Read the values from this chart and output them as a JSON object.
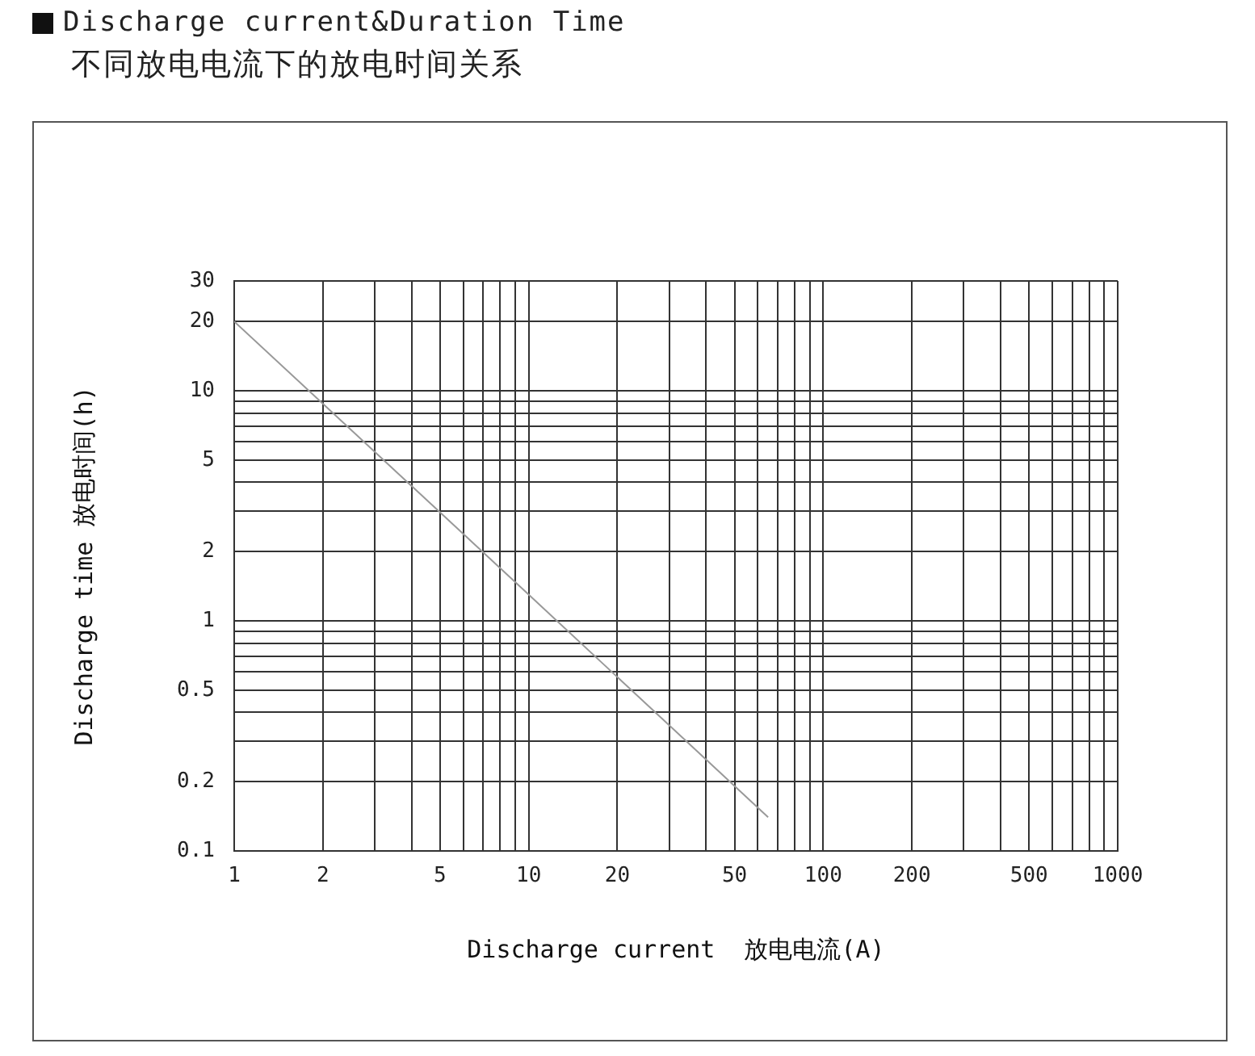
{
  "chart_data": {
    "type": "line",
    "title": "Discharge current&Duration Time",
    "subtitle": "不同放电电流下的放电时间关系",
    "xlabel": "Discharge current  放电电流(A)",
    "ylabel": "Discharge time 放电时间(h)",
    "log": "xy",
    "grid": true,
    "legend": false,
    "marker": "none",
    "line_style": "solid",
    "x": [
      1,
      10,
      65
    ],
    "series": [
      {
        "color": "#999999",
        "values": [
          20,
          1.3,
          0.14
        ]
      }
    ],
    "xlim": [
      1,
      1000
    ],
    "xticks": [
      1,
      2,
      {
        "value": 3,
        "label": null
      },
      {
        "value": 4,
        "label": null
      },
      5,
      {
        "value": 6,
        "label": null
      },
      {
        "value": 7,
        "label": null
      },
      {
        "value": 8,
        "label": null
      },
      {
        "value": 9,
        "label": null
      },
      10,
      20,
      {
        "value": 30,
        "label": null
      },
      {
        "value": 40,
        "label": null
      },
      50,
      {
        "value": 60,
        "label": null
      },
      {
        "value": 70,
        "label": null
      },
      {
        "value": 80,
        "label": null
      },
      {
        "value": 90,
        "label": null
      },
      100,
      200,
      {
        "value": 300,
        "label": null
      },
      {
        "value": 400,
        "label": null
      },
      500,
      {
        "value": 600,
        "label": null
      },
      {
        "value": 700,
        "label": null
      },
      {
        "value": 800,
        "label": null
      },
      {
        "value": 900,
        "label": null
      },
      1000
    ],
    "ylim": [
      0.1,
      30
    ],
    "yticks": [
      0.1,
      0.2,
      {
        "value": 0.3,
        "label": null
      },
      {
        "value": 0.4,
        "label": null
      },
      0.5,
      {
        "value": 0.6,
        "label": null
      },
      {
        "value": 0.7,
        "label": null
      },
      {
        "value": 0.8,
        "label": null
      },
      {
        "value": 0.9,
        "label": null
      },
      1,
      2,
      {
        "value": 3,
        "label": null
      },
      {
        "value": 4,
        "label": null
      },
      5,
      {
        "value": 6,
        "label": null
      },
      {
        "value": 7,
        "label": null
      },
      {
        "value": 8,
        "label": null
      },
      {
        "value": 9,
        "label": null
      },
      10,
      20,
      30
    ]
  }
}
